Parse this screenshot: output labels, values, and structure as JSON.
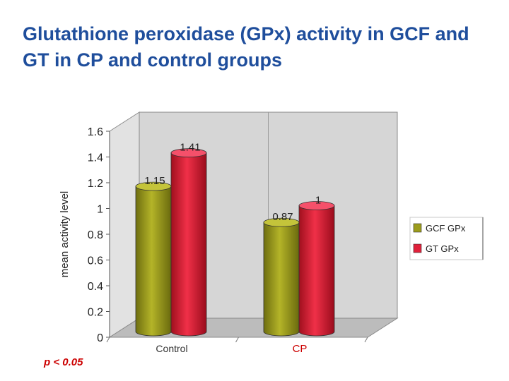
{
  "slide": {
    "title": "Glutathione peroxidase (GPx) activity in GCF and GT in CP and control groups",
    "p_value": "p < 0.05"
  },
  "chart_data": {
    "type": "bar",
    "title": "",
    "xlabel": "",
    "ylabel": "mean activity level",
    "categories": [
      "Control",
      "CP"
    ],
    "series": [
      {
        "name": "GCF GPx",
        "values": [
          1.15,
          0.87
        ],
        "labels": [
          "1.15",
          "0.87"
        ],
        "color": "#9c9c1c"
      },
      {
        "name": "GT GPx",
        "values": [
          1.41,
          1
        ],
        "labels": [
          "1.41",
          "1"
        ],
        "color": "#e0203a"
      }
    ],
    "ylim": [
      0,
      1.6
    ],
    "yticks": [
      "0",
      "0.2",
      "0.4",
      "0.6",
      "0.8",
      "1",
      "1.2",
      "1.4",
      "1.6"
    ],
    "grid": false,
    "legend": "right",
    "wall_color": "#d6d6d6"
  }
}
